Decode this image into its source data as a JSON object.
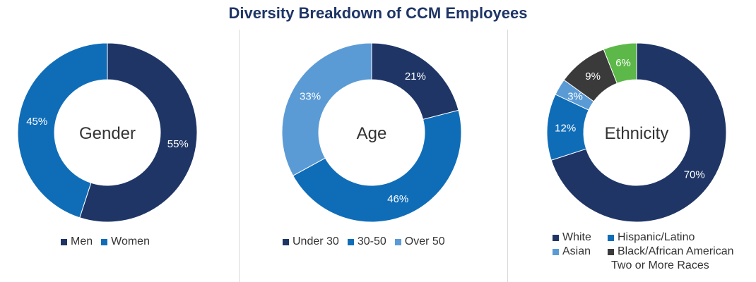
{
  "title": "Diversity Breakdown of CCM Employees",
  "chart_data": [
    {
      "type": "pie",
      "center_label": "Gender",
      "categories": [
        "Men",
        "Women"
      ],
      "values": [
        55,
        45
      ],
      "labels": [
        "55%",
        "45%"
      ],
      "colors": [
        "#1f3566",
        "#0f6db8"
      ],
      "legend_rows": [
        [
          "Men",
          "Women"
        ]
      ],
      "label_colors": [
        "#ffffff",
        "#ffffff"
      ]
    },
    {
      "type": "pie",
      "center_label": "Age",
      "categories": [
        "Under 30",
        "30-50",
        "Over 50"
      ],
      "values": [
        21,
        46,
        33
      ],
      "labels": [
        "21%",
        "46%",
        "33%"
      ],
      "colors": [
        "#1f3566",
        "#0f6db8",
        "#5b9bd5"
      ],
      "legend_rows": [
        [
          "Under 30",
          "30-50",
          "Over 50"
        ]
      ],
      "label_colors": [
        "#ffffff",
        "#ffffff",
        "#ffffff"
      ]
    },
    {
      "type": "pie",
      "center_label": "Ethnicity",
      "categories": [
        "White",
        "Hispanic/Latino",
        "Asian",
        "Black/African American",
        "Two or More Races"
      ],
      "values": [
        70,
        12,
        3,
        9,
        6
      ],
      "labels": [
        "70%",
        "12%",
        "3%",
        "9%",
        "6%"
      ],
      "colors": [
        "#1f3566",
        "#0f6db8",
        "#5b9bd5",
        "#3a3a3a",
        "#5cb848"
      ],
      "legend_rows": [
        [
          "White",
          "Hispanic/Latino"
        ],
        [
          "Asian",
          "Black/African American"
        ],
        [
          "Two or More Races"
        ]
      ],
      "label_colors": [
        "#ffffff",
        "#ffffff",
        "#ffffff",
        "#ffffff",
        "#ffffff"
      ]
    }
  ]
}
